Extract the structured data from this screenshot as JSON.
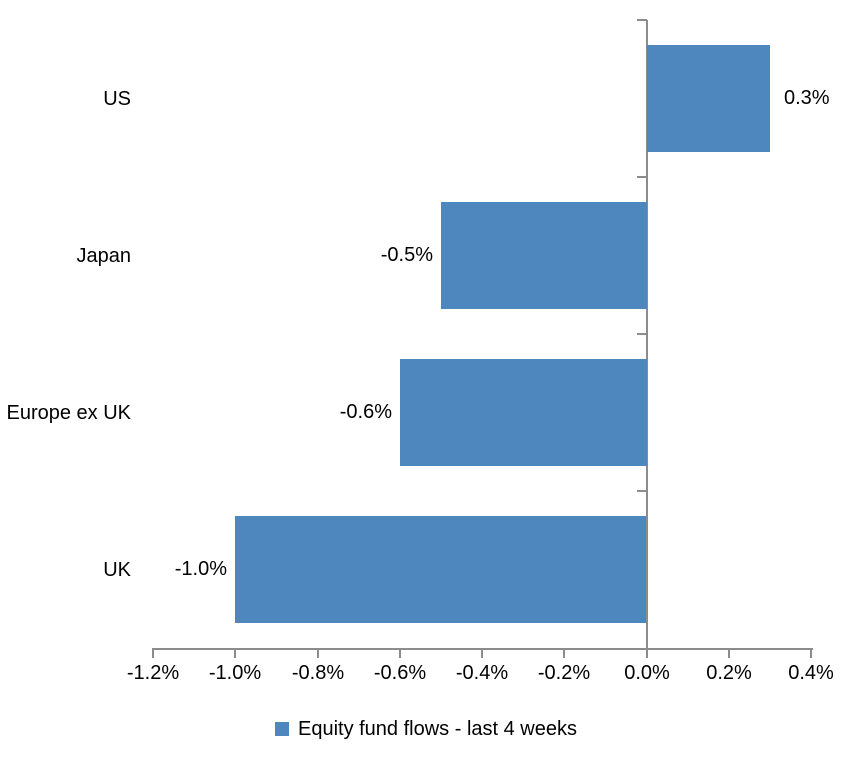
{
  "chart_data": {
    "type": "bar",
    "orientation": "horizontal",
    "title": "",
    "series_name": "Equity fund flows - last 4 weeks",
    "categories": [
      "US",
      "Japan",
      "Europe ex UK",
      "UK"
    ],
    "values": [
      0.3,
      -0.5,
      -0.6,
      -1.0
    ],
    "value_labels": [
      "0.3%",
      "-0.5%",
      "-0.6%",
      "-1.0%"
    ],
    "xlim": [
      -1.2,
      0.4
    ],
    "x_tick_values": [
      -1.2,
      -1.0,
      -0.8,
      -0.6,
      -0.4,
      -0.2,
      0.0,
      0.2,
      0.4
    ],
    "x_tick_labels": [
      "-1.2%",
      "-1.0%",
      "-0.8%",
      "-0.6%",
      "-0.4%",
      "-0.2%",
      "0.0%",
      "0.2%",
      "0.4%"
    ],
    "grid": false,
    "legend_position": "bottom",
    "colors": {
      "bar": "#4E87BE",
      "axis": "#8C8C8C",
      "text": "#000000",
      "background": "#FFFFFF"
    }
  }
}
